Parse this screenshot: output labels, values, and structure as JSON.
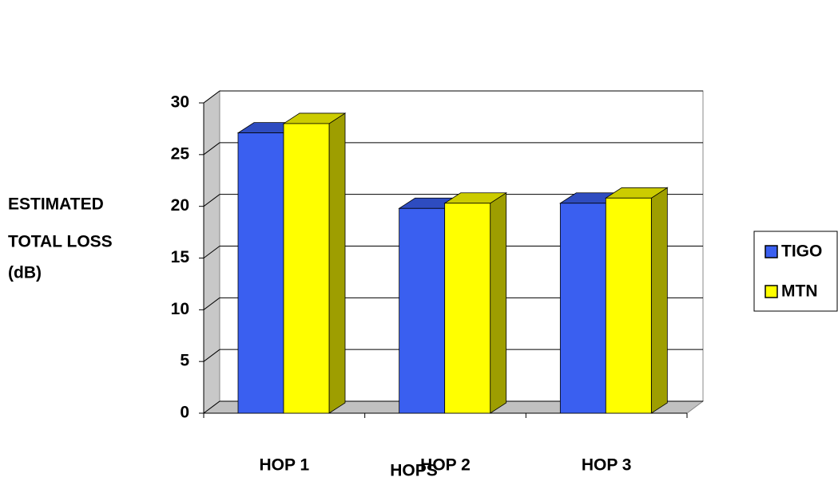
{
  "chart_data": {
    "type": "bar3d",
    "y_label": [
      "ESTIMATED",
      "TOTAL LOSS",
      "(dB)"
    ],
    "x_label": "HOPS",
    "categories": [
      "HOP 1",
      "HOP 2",
      "HOP 3"
    ],
    "series": [
      {
        "name": "TIGO",
        "color": "#3a5ff0",
        "values": [
          27.1,
          19.8,
          20.3
        ]
      },
      {
        "name": "MTN",
        "color": "#ffff00",
        "values": [
          28,
          20.3,
          20.8
        ]
      }
    ],
    "ylim": [
      0,
      30
    ],
    "yticks": [
      0,
      5,
      10,
      15,
      20,
      25,
      30
    ],
    "grid": true,
    "legend": "right"
  }
}
